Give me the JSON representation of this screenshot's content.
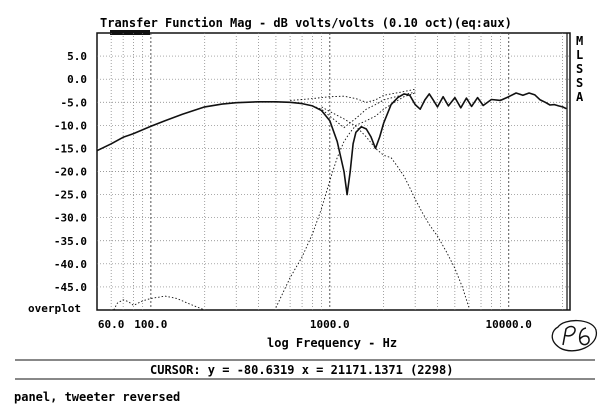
{
  "chart_data": {
    "type": "line",
    "title": "Transfer Function Mag - dB volts/volts (0.10 oct)(eq:aux)",
    "xlabel": "log Frequency - Hz",
    "ylabel": "",
    "xscale": "log",
    "xlim": [
      50,
      22000
    ],
    "ylim": [
      -50,
      10
    ],
    "grid": true,
    "y_ticks": [
      5,
      0,
      -5,
      -10,
      -15,
      -20,
      -25,
      -30,
      -35,
      -40,
      -45
    ],
    "y_tick_labels": [
      "5.0",
      "0.0",
      "-5.0",
      "-10.0",
      "-15.0",
      "-20.0",
      "-25.0",
      "-30.0",
      "-35.0",
      "-40.0",
      "-45.0"
    ],
    "x_tick_labels": [
      {
        "label": "60.0",
        "value": 60
      },
      {
        "label": "100.0",
        "value": 100
      },
      {
        "label": "1000.0",
        "value": 1000
      },
      {
        "label": "10000.0",
        "value": 10000
      }
    ],
    "overplot_label": "overplot",
    "side_labels": [
      "M",
      "L",
      "S",
      "S",
      "A"
    ],
    "cursor_x": 21171.1371,
    "series": [
      {
        "style": "solid",
        "x": [
          50,
          60,
          70,
          80,
          100,
          120,
          150,
          200,
          250,
          300,
          400,
          500,
          600,
          700,
          800,
          900,
          1000,
          1100,
          1200,
          1250,
          1300,
          1350,
          1400,
          1500,
          1600,
          1700,
          1800,
          1900,
          2000,
          2200,
          2400,
          2600,
          2800,
          3000,
          3200,
          3400,
          3600,
          3800,
          4000,
          4300,
          4600,
          5000,
          5400,
          5800,
          6200,
          6700,
          7200,
          8000,
          9000,
          10000,
          11000,
          12000,
          13000,
          14000,
          15000,
          16000,
          17000,
          18000,
          19000,
          20000,
          21000
        ],
        "y": [
          -15.5,
          -14.0,
          -12.6,
          -11.8,
          -10.2,
          -9.0,
          -7.6,
          -6.0,
          -5.4,
          -5.1,
          -4.9,
          -4.9,
          -5.0,
          -5.3,
          -5.8,
          -6.8,
          -9.0,
          -13.5,
          -20.0,
          -25.0,
          -20.0,
          -14.0,
          -11.5,
          -10.3,
          -10.8,
          -12.5,
          -15.0,
          -12.5,
          -9.5,
          -5.5,
          -4.0,
          -3.2,
          -3.5,
          -5.5,
          -6.5,
          -4.5,
          -3.2,
          -4.6,
          -6.0,
          -3.8,
          -5.8,
          -4.0,
          -6.2,
          -4.1,
          -5.9,
          -4.0,
          -5.7,
          -4.4,
          -4.6,
          -3.8,
          -3.0,
          -3.5,
          -3.0,
          -3.4,
          -4.5,
          -5.0,
          -5.6,
          -5.5,
          -5.8,
          -6.0,
          -6.4
        ]
      },
      {
        "style": "dotted",
        "name": "",
        "x": [
          600,
          700,
          800,
          900,
          1000,
          1200,
          1400,
          1600,
          1800,
          2000,
          2500,
          3000
        ],
        "y": [
          -4.6,
          -4.4,
          -4.2,
          -4.0,
          -3.8,
          -3.7,
          -4.2,
          -5.0,
          -4.5,
          -3.5,
          -2.8,
          -2.2
        ]
      },
      {
        "style": "dotted",
        "name": "",
        "x": [
          800,
          900,
          1000,
          1200,
          1400,
          1600,
          1800,
          2000,
          2500,
          3000
        ],
        "y": [
          -5.8,
          -6.5,
          -8.0,
          -10.5,
          -8.5,
          -6.5,
          -5.5,
          -4.5,
          -3.5,
          -2.8
        ]
      },
      {
        "style": "dotted",
        "name": "",
        "x": [
          500,
          600,
          700,
          800,
          900,
          1000,
          1100,
          1200,
          1300,
          1400,
          1500,
          1600,
          1800,
          2000,
          2300,
          2600,
          3000
        ],
        "y": [
          -49.5,
          -43.0,
          -38.5,
          -33.5,
          -28.0,
          -22.0,
          -17.0,
          -13.5,
          -11.5,
          -10.0,
          -9.5,
          -9.0,
          -8.0,
          -6.5,
          -5.0,
          -3.8,
          -3.0
        ]
      },
      {
        "style": "dotted",
        "name": "",
        "x": [
          900,
          1000,
          1200,
          1400,
          1600,
          1800,
          2000,
          2200,
          2400,
          2600,
          2800,
          3000,
          3300,
          3600,
          4000,
          4500,
          5000,
          5500,
          6000
        ],
        "y": [
          -6.0,
          -7.0,
          -8.6,
          -10.2,
          -12.5,
          -15.0,
          -16.5,
          -17.0,
          -19.0,
          -21.0,
          -23.5,
          -26.0,
          -29.0,
          -31.5,
          -34.0,
          -37.5,
          -41.0,
          -45.0,
          -49.5
        ]
      },
      {
        "style": "dotted",
        "name": "",
        "x": [
          62,
          65,
          70,
          75,
          80,
          90,
          100,
          120,
          140,
          160,
          180,
          200
        ],
        "y": [
          -50,
          -48.5,
          -47.8,
          -48.2,
          -49.0,
          -48.0,
          -47.5,
          -47.0,
          -47.5,
          -48.5,
          -49.3,
          -50
        ]
      }
    ]
  },
  "cursor_readout": "CURSOR: y = -80.6319 x = 21171.1371 (2298)",
  "footer_note": "panel, tweeter reversed",
  "colors": {
    "ink": "#111111",
    "grid": "#7a7a7a",
    "paper": "#ffffff"
  }
}
